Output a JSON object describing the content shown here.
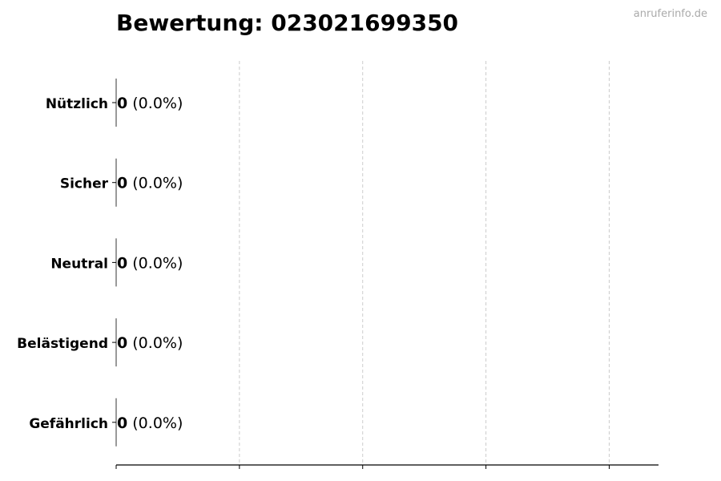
{
  "chart_data": {
    "type": "bar",
    "orientation": "horizontal",
    "title": "Bewertung: 023021699350",
    "watermark": "anruferinfo.de",
    "categories": [
      "Nützlich",
      "Sicher",
      "Neutral",
      "Belästigend",
      "Gefährlich"
    ],
    "values": [
      0,
      0,
      0,
      0,
      0
    ],
    "labels": [
      "(0.0%)",
      "(0.0%)",
      "(0.0%)",
      "(0.0%)",
      "(0.0%)"
    ],
    "xlim": [
      0,
      4.4
    ],
    "xticks": [
      0,
      1,
      2,
      3,
      4
    ],
    "grid": "x-dashed",
    "bar_edge_color": "#333333",
    "grid_color": "#cccccc"
  }
}
